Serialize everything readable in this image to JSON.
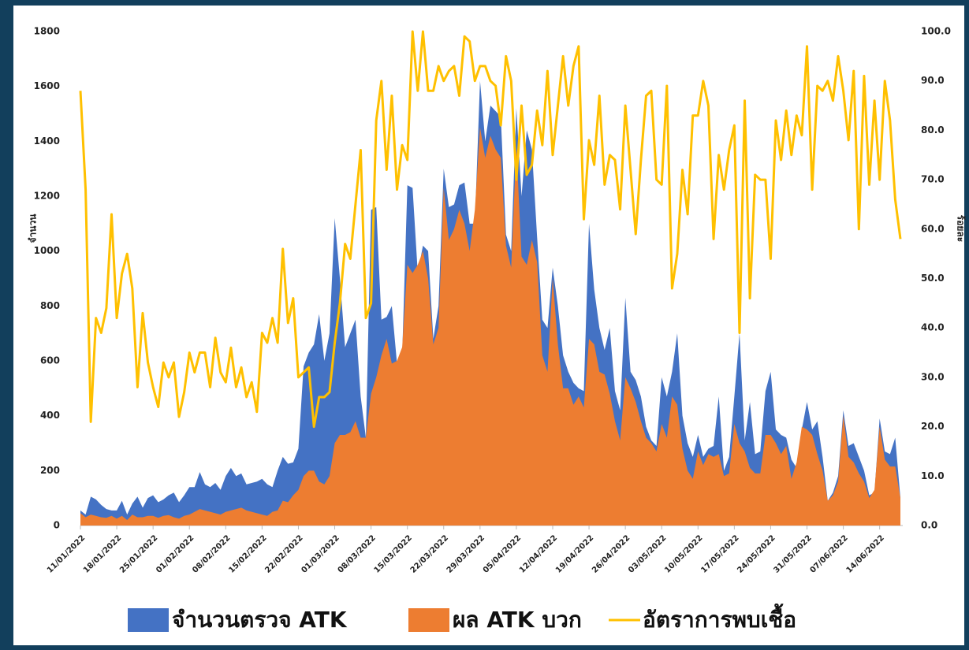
{
  "chart_data": {
    "type": "combo",
    "y_label": "จำนวน",
    "y2_label": "ร้อยละ",
    "categories": [
      "11/01/2022",
      null,
      null,
      null,
      null,
      null,
      null,
      "18/01/2022",
      null,
      null,
      null,
      null,
      null,
      null,
      "25/01/2022",
      null,
      null,
      null,
      null,
      null,
      null,
      "01/02/2022",
      null,
      null,
      null,
      null,
      null,
      null,
      "08/02/2022",
      null,
      null,
      null,
      null,
      null,
      null,
      "15/02/2022",
      null,
      null,
      null,
      null,
      null,
      null,
      "22/02/2022",
      null,
      null,
      null,
      null,
      null,
      null,
      "01/03/2022",
      null,
      null,
      null,
      null,
      null,
      null,
      "08/03/2022",
      null,
      null,
      null,
      null,
      null,
      null,
      "15/03/2022",
      null,
      null,
      null,
      null,
      null,
      null,
      "22/03/2022",
      null,
      null,
      null,
      null,
      null,
      null,
      "29/03/2022",
      null,
      null,
      null,
      null,
      null,
      null,
      "05/04/2022",
      null,
      null,
      null,
      null,
      null,
      null,
      "12/04/2022",
      null,
      null,
      null,
      null,
      null,
      null,
      "19/04/2022",
      null,
      null,
      null,
      null,
      null,
      null,
      "26/04/2022",
      null,
      null,
      null,
      null,
      null,
      null,
      "03/05/2022",
      null,
      null,
      null,
      null,
      null,
      null,
      "10/05/2022",
      null,
      null,
      null,
      null,
      null,
      null,
      "17/05/2022",
      null,
      null,
      null,
      null,
      null,
      null,
      "24/05/2022",
      null,
      null,
      null,
      null,
      null,
      null,
      "31/05/2022",
      null,
      null,
      null,
      null,
      null,
      null,
      "07/06/2022",
      null,
      null,
      null,
      null,
      null,
      null,
      "14/06/2022",
      null,
      null,
      null,
      null
    ],
    "series": [
      {
        "name": "จำนวนตรวจ ATK",
        "type": "area",
        "color": "#4472c4",
        "values": [
          55,
          40,
          105,
          95,
          75,
          60,
          55,
          55,
          90,
          40,
          80,
          105,
          65,
          100,
          110,
          85,
          95,
          110,
          120,
          85,
          110,
          140,
          140,
          195,
          150,
          140,
          155,
          130,
          180,
          210,
          180,
          190,
          150,
          155,
          160,
          170,
          150,
          140,
          200,
          250,
          225,
          230,
          280,
          580,
          630,
          660,
          770,
          600,
          700,
          1120,
          900,
          650,
          700,
          750,
          470,
          320,
          1150,
          1160,
          750,
          760,
          800,
          590,
          620,
          1240,
          1230,
          920,
          1020,
          1000,
          680,
          800,
          1300,
          1160,
          1170,
          1240,
          1250,
          1100,
          1100,
          1620,
          1400,
          1530,
          1510,
          1490,
          1060,
          1000,
          1520,
          1200,
          1440,
          1370,
          1050,
          750,
          720,
          940,
          800,
          620,
          560,
          520,
          500,
          490,
          1100,
          860,
          720,
          640,
          720,
          490,
          420,
          830,
          560,
          530,
          470,
          360,
          310,
          290,
          540,
          470,
          560,
          700,
          400,
          300,
          250,
          330,
          250,
          280,
          290,
          470,
          200,
          250,
          470,
          700,
          310,
          450,
          260,
          270,
          490,
          560,
          350,
          330,
          320,
          240,
          210,
          350,
          450,
          350,
          380,
          250,
          90,
          120,
          180,
          420,
          290,
          300,
          250,
          200,
          110,
          120,
          390,
          270,
          260,
          320,
          100
        ]
      },
      {
        "name": "ผล ATK บวก",
        "type": "area",
        "color": "#ed7d31",
        "values": [
          45,
          30,
          40,
          35,
          30,
          28,
          35,
          25,
          35,
          20,
          40,
          30,
          30,
          35,
          35,
          28,
          35,
          38,
          30,
          25,
          35,
          40,
          50,
          60,
          55,
          50,
          45,
          40,
          50,
          55,
          60,
          65,
          55,
          50,
          45,
          40,
          35,
          50,
          55,
          90,
          85,
          110,
          130,
          180,
          200,
          200,
          160,
          150,
          180,
          300,
          330,
          330,
          340,
          380,
          320,
          320,
          480,
          540,
          620,
          680,
          590,
          600,
          650,
          950,
          920,
          950,
          1000,
          900,
          660,
          720,
          1230,
          1040,
          1080,
          1150,
          1100,
          1000,
          1150,
          1450,
          1340,
          1420,
          1370,
          1340,
          1020,
          940,
          1380,
          980,
          950,
          1040,
          960,
          620,
          560,
          900,
          660,
          500,
          500,
          440,
          470,
          430,
          680,
          660,
          560,
          550,
          480,
          380,
          310,
          540,
          500,
          450,
          380,
          320,
          300,
          270,
          370,
          320,
          470,
          440,
          280,
          200,
          170,
          270,
          220,
          260,
          250,
          260,
          180,
          190,
          370,
          300,
          270,
          210,
          190,
          190,
          330,
          330,
          300,
          260,
          290,
          170,
          230,
          360,
          350,
          330,
          260,
          200,
          90,
          110,
          160,
          400,
          250,
          230,
          190,
          160,
          100,
          130,
          360,
          240,
          215,
          215,
          100
        ]
      },
      {
        "name": "อัตราการพบเชื้อ",
        "type": "line",
        "axis": "y2",
        "color": "#ffc000",
        "values": [
          88,
          68,
          21,
          42,
          39,
          44,
          63,
          42,
          51,
          55,
          48,
          28,
          43,
          33,
          28,
          24,
          33,
          30,
          33,
          22,
          27,
          35,
          31,
          35,
          35,
          28,
          38,
          31,
          29,
          36,
          28,
          32,
          26,
          29,
          23,
          39,
          37,
          42,
          37,
          56,
          41,
          46,
          30,
          31,
          32,
          20,
          26,
          26,
          27,
          37,
          45,
          57,
          54,
          65,
          76,
          42,
          45,
          82,
          90,
          72,
          87,
          68,
          77,
          74,
          100,
          88,
          100,
          88,
          88,
          93,
          90,
          92,
          93,
          87,
          99,
          98,
          90,
          93,
          93,
          90,
          89,
          81,
          95,
          90,
          70,
          85,
          71,
          73,
          84,
          77,
          92,
          75,
          85,
          95,
          85,
          93,
          97,
          62,
          78,
          73,
          87,
          69,
          75,
          74,
          64,
          85,
          72,
          59,
          74,
          87,
          88,
          70,
          69,
          89,
          48,
          55,
          72,
          63,
          83,
          83,
          90,
          85,
          58,
          75,
          68,
          76,
          81,
          39,
          86,
          46,
          71,
          70,
          70,
          54,
          82,
          74,
          84,
          75,
          83,
          79,
          97,
          68,
          89,
          88,
          90,
          86,
          95,
          88,
          78,
          92,
          60,
          91,
          69,
          86,
          70,
          90,
          82,
          66,
          58
        ]
      }
    ],
    "ylim": [
      0,
      1800
    ],
    "yticks": [
      0,
      200,
      400,
      600,
      800,
      1000,
      1200,
      1400,
      1600,
      1800
    ],
    "y2lim": [
      0,
      100
    ],
    "y2ticks": [
      {
        "value": 0,
        "label": "0.0"
      },
      {
        "value": 10,
        "label": "10.0"
      },
      {
        "value": 20,
        "label": "20.0"
      },
      {
        "value": 30,
        "label": "30.0"
      },
      {
        "value": 40,
        "label": "40.0"
      },
      {
        "value": 50,
        "label": "50.0"
      },
      {
        "value": 60,
        "label": "60.0"
      },
      {
        "value": 70,
        "label": "70.0"
      },
      {
        "value": 80,
        "label": "80.0"
      },
      {
        "value": 90,
        "label": "90.0"
      },
      {
        "value": 100,
        "label": "100.0"
      }
    ],
    "legend": "bottom"
  }
}
